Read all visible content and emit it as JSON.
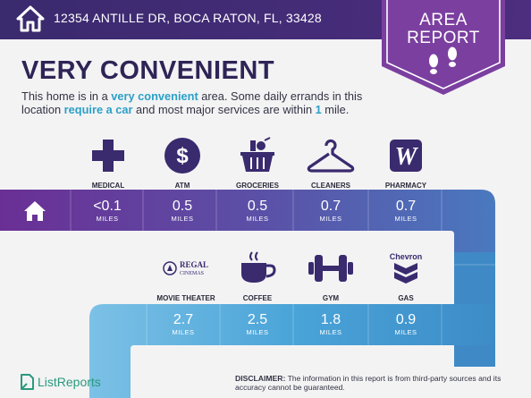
{
  "header": {
    "address": "12354 ANTILLE DR, BOCA RATON, FL, 33428"
  },
  "badge": {
    "line1": "AREA",
    "line2": "REPORT"
  },
  "title": "VERY CONVENIENT",
  "description": {
    "part1": "This home is in a ",
    "hl1": "very convenient",
    "part2": " area. Some daily errands in this location ",
    "hl2": "require a car",
    "part3": " and most major services are within ",
    "hl3": "1",
    "part4": " mile."
  },
  "unit": "MILES",
  "row1": [
    {
      "label": "MEDICAL",
      "distance": "<0.1",
      "icon": "medical-cross-icon"
    },
    {
      "label": "ATM",
      "distance": "0.5",
      "icon": "dollar-icon"
    },
    {
      "label": "GROCERIES",
      "distance": "0.5",
      "icon": "grocery-basket-icon"
    },
    {
      "label": "CLEANERS",
      "distance": "0.7",
      "icon": "hanger-icon"
    },
    {
      "label": "PHARMACY",
      "distance": "0.7",
      "icon": "walgreens-logo-icon"
    }
  ],
  "row2": [
    {
      "label": "MOVIE THEATER",
      "distance": "2.7",
      "icon": "regal-cinemas-logo",
      "logo_text_1": "REGAL",
      "logo_text_2": "CINEMAS"
    },
    {
      "label": "COFFEE",
      "distance": "2.5",
      "icon": "coffee-cup-icon"
    },
    {
      "label": "GYM",
      "distance": "1.8",
      "icon": "dumbbell-icon"
    },
    {
      "label": "GAS",
      "distance": "0.9",
      "icon": "chevron-logo-icon",
      "logo_text": "Chevron"
    }
  ],
  "footer": {
    "brand": "ListReports",
    "disclaimer_bold": "DISCLAIMER:",
    "disclaimer_text": " The information in this report is from third-party sources and its accuracy cannot be guaranteed."
  },
  "colors": {
    "header": "#3a2a6e",
    "badge": "#7b3fa0",
    "accent": "#2ba0c8",
    "band_purple": "#6a3fa0",
    "band_blue": "#3d8cc8",
    "band_light_blue": "#7cc1e6",
    "brand_green": "#2a9a7e"
  }
}
